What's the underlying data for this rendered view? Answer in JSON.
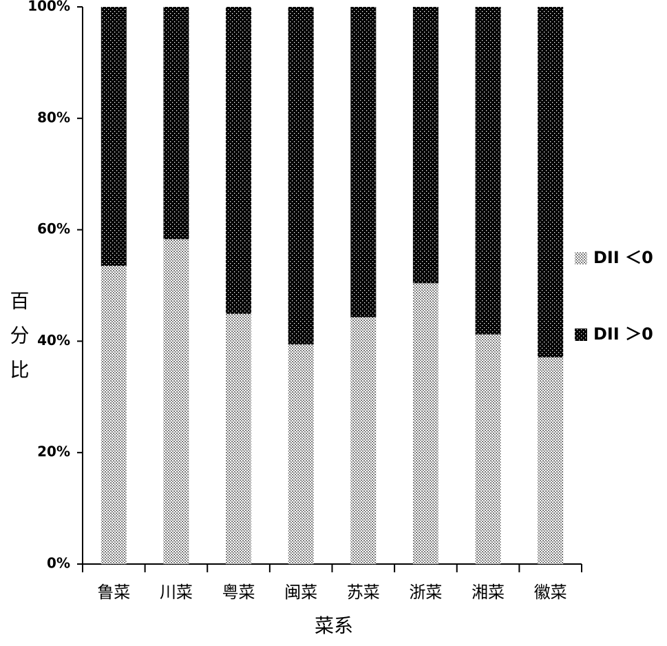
{
  "chart_data": {
    "type": "stacked_bar",
    "x_label": "菜系",
    "y_label": "百分比",
    "categories": [
      "鲁菜",
      "川菜",
      "粤菜",
      "闽菜",
      "苏菜",
      "浙菜",
      "湘菜",
      "徽菜"
    ],
    "series": [
      {
        "name": "DII ＜0",
        "color": "#8c8c8c",
        "values": [
          53.5,
          58.3,
          44.9,
          39.4,
          44.3,
          50.4,
          41.2,
          37.1
        ]
      },
      {
        "name": "DII ＞0",
        "color": "#000000",
        "values": [
          46.5,
          41.7,
          55.1,
          60.6,
          55.7,
          49.6,
          58.8,
          62.9
        ]
      }
    ],
    "ylim": [
      0,
      100
    ],
    "yticks": [
      {
        "value": 0,
        "label": "0%"
      },
      {
        "value": 20,
        "label": "20%"
      },
      {
        "value": 40,
        "label": "40%"
      },
      {
        "value": 60,
        "label": "60%"
      },
      {
        "value": 80,
        "label": "80%"
      },
      {
        "value": 100,
        "label": "100%"
      }
    ],
    "legend": "right"
  }
}
